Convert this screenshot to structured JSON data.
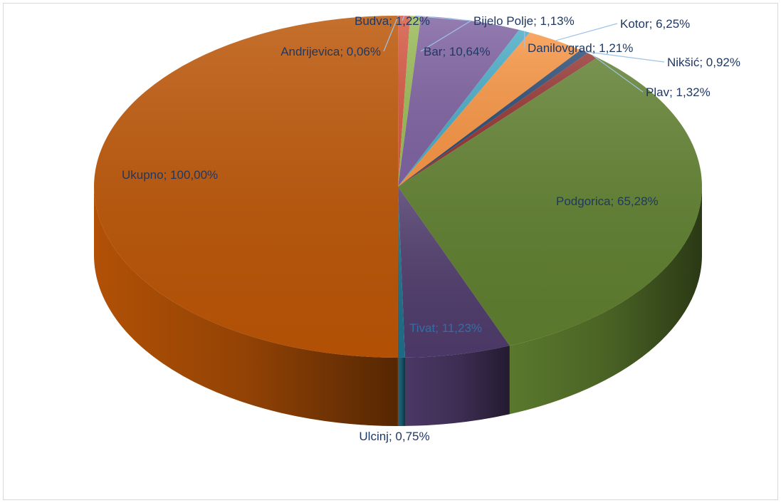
{
  "chart_data": {
    "type": "pie",
    "style": "3d",
    "title": "",
    "slices": [
      {
        "label": "Andrijevica; 0,06%",
        "name": "Andrijevica",
        "value": 0.06,
        "color": "#d94f3d"
      },
      {
        "label": "Budva; 1,22%",
        "name": "Budva",
        "value": 1.22,
        "color": "#d65a45"
      },
      {
        "label": "Bijelo Polje; 1,13%",
        "name": "Bijelo Polje",
        "value": 1.13,
        "color": "#9bbb59"
      },
      {
        "label": "Bar; 10,64%",
        "name": "Bar",
        "value": 10.64,
        "color": "#8064a2"
      },
      {
        "label": "Danilovgrad; 1,21%",
        "name": "Danilovgrad",
        "value": 1.21,
        "color": "#4bacc6"
      },
      {
        "label": "Kotor; 6,25%",
        "name": "Kotor",
        "value": 6.25,
        "color": "#f79646"
      },
      {
        "label": "Nikšić; 0,92%",
        "name": "Nikšić",
        "value": 0.92,
        "color": "#2c4d75"
      },
      {
        "label": "Plav; 1,32%",
        "name": "Plav",
        "value": 1.32,
        "color": "#953734"
      },
      {
        "label": "Podgorica; 65,28%",
        "name": "Podgorica",
        "value": 65.28,
        "color": "#5f7f2f"
      },
      {
        "label": "Tivat; 11,23%",
        "name": "Tivat",
        "value": 11.23,
        "color": "#4f3b6b"
      },
      {
        "label": "Ulcinj; 0,75%",
        "name": "Ulcinj",
        "value": 0.75,
        "color": "#1f6f8b"
      },
      {
        "label": "Ukupno; 100,00%",
        "name": "Ukupno",
        "value": 100.0,
        "color": "#bb5506"
      }
    ],
    "label_color": "#1f3864",
    "leader_line_color": "#9dc3e6"
  }
}
